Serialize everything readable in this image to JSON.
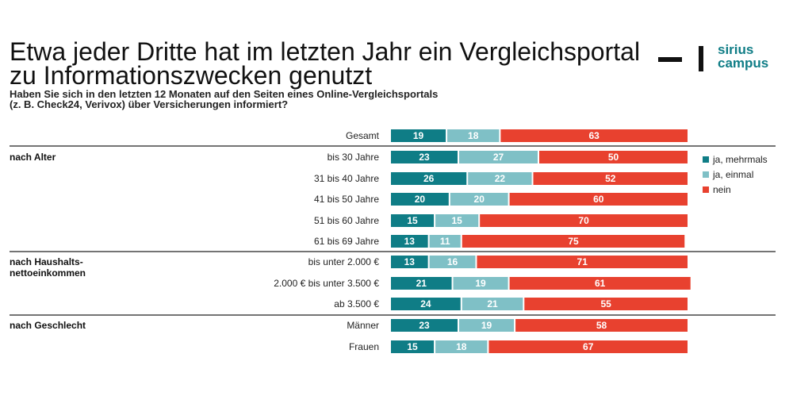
{
  "title_line1": "Etwa jeder Dritte hat im letzten Jahr ein Vergleichsportal",
  "title_line2": "zu Informationszwecken genutzt",
  "subtitle_line1": "Haben Sie sich in den letzten 12 Monaten auf den Seiten eines Online-Vergleichsportals",
  "subtitle_line2": "(z. B. Check24, Verivox) über Versicherungen informiert?",
  "logo": {
    "line1": "sirius",
    "line2": "campus",
    "color": "#0f7d86"
  },
  "chart_data": {
    "type": "bar",
    "orientation": "horizontal",
    "stacked": true,
    "unit": "%",
    "categories": [
      "Gesamt",
      "bis 30 Jahre",
      "31 bis 40 Jahre",
      "41 bis 50 Jahre",
      "51 bis 60 Jahre",
      "61 bis 69 Jahre",
      "bis unter 2.000 €",
      "2.000 € bis unter 3.500 €",
      "ab 3.500 €",
      "Männer",
      "Frauen"
    ],
    "groups": [
      {
        "label": "nach Alter",
        "start": 1,
        "end": 5
      },
      {
        "label": "nach Haushalts-\nnettoeinkommen",
        "start": 6,
        "end": 8
      },
      {
        "label": "nach Geschlecht",
        "start": 9,
        "end": 10
      }
    ],
    "series": [
      {
        "name": "ja, mehrmals",
        "color": "#0f7d86",
        "values": [
          19,
          23,
          26,
          20,
          15,
          13,
          13,
          21,
          24,
          23,
          15
        ]
      },
      {
        "name": "ja, einmal",
        "color": "#7fc0c6",
        "values": [
          18,
          27,
          22,
          20,
          15,
          11,
          16,
          19,
          21,
          19,
          18
        ]
      },
      {
        "name": "nein",
        "color": "#e8412f",
        "values": [
          63,
          50,
          52,
          60,
          70,
          75,
          71,
          61,
          55,
          58,
          67
        ]
      }
    ],
    "xlim": [
      0,
      100
    ],
    "legend_position": "right"
  }
}
